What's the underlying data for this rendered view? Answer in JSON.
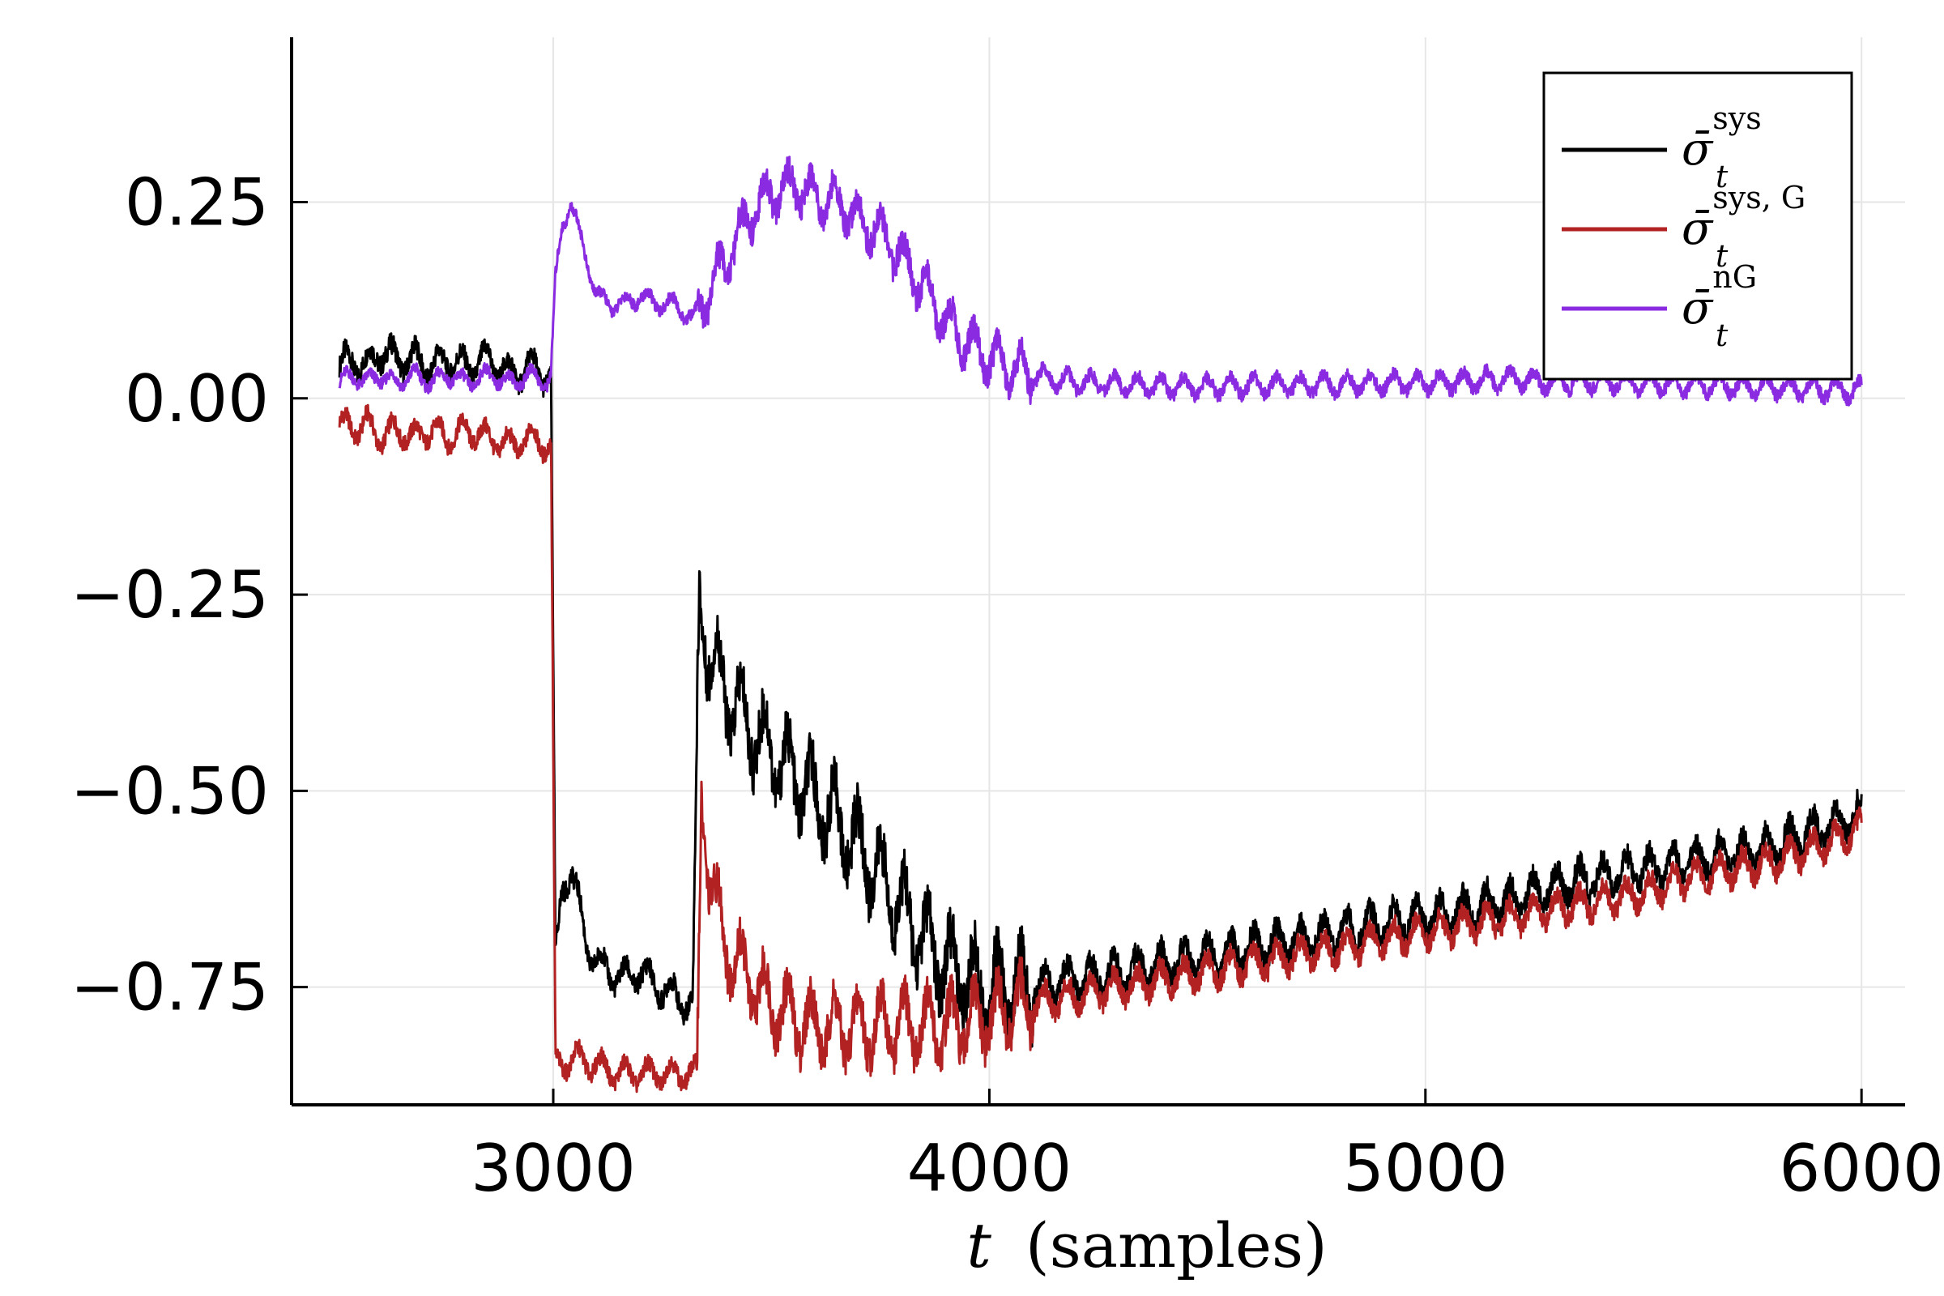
{
  "chart_data": {
    "type": "line",
    "title": "",
    "xlabel": "t (samples)",
    "xlabel_var": "t",
    "xlabel_unit": "(samples)",
    "ylabel": "",
    "xlim": [
      2400,
      6100
    ],
    "ylim": [
      -0.9,
      0.46
    ],
    "x_ticks": [
      3000,
      4000,
      5000,
      6000
    ],
    "x_tick_labels": [
      "3000",
      "4000",
      "5000",
      "6000"
    ],
    "y_ticks": [
      0.25,
      0.0,
      -0.25,
      -0.5,
      -0.75
    ],
    "y_tick_labels": [
      "0.25",
      "0.00",
      "−0.25",
      "−0.50",
      "−0.75"
    ],
    "grid": true,
    "legend_position": "top-right",
    "series": [
      {
        "name": "sigma_bar_t^sys",
        "label_base": "σ̄",
        "label_sub": "t",
        "label_sup": "sys",
        "color": "#000000",
        "x": [
          2510,
          2540,
          2570,
          2600,
          2640,
          2680,
          2720,
          2760,
          2800,
          2850,
          2900,
          2950,
          2985,
          2995,
          3005,
          3020,
          3040,
          3060,
          3080,
          3100,
          3130,
          3160,
          3200,
          3240,
          3280,
          3300,
          3320,
          3335,
          3360,
          3400,
          3450,
          3500,
          3550,
          3600,
          3650,
          3700,
          3750,
          3800,
          3850,
          3900,
          3950,
          4000,
          4050,
          4100,
          4200,
          4300,
          4400,
          4500,
          4600,
          4700,
          4800,
          4900,
          5000,
          5100,
          5200,
          5300,
          5400,
          5500,
          5600,
          5700,
          5800,
          5900,
          6000
        ],
        "y": [
          0.04,
          0.05,
          0.04,
          0.06,
          0.05,
          0.05,
          0.04,
          0.05,
          0.04,
          0.05,
          0.03,
          0.04,
          0.03,
          0.02,
          -0.72,
          -0.62,
          -0.6,
          -0.65,
          -0.7,
          -0.72,
          -0.73,
          -0.74,
          -0.73,
          -0.75,
          -0.76,
          -0.77,
          -0.77,
          -0.25,
          -0.33,
          -0.38,
          -0.42,
          -0.45,
          -0.48,
          -0.51,
          -0.54,
          -0.57,
          -0.61,
          -0.65,
          -0.69,
          -0.72,
          -0.74,
          -0.75,
          -0.75,
          -0.75,
          -0.74,
          -0.73,
          -0.72,
          -0.71,
          -0.7,
          -0.69,
          -0.68,
          -0.67,
          -0.66,
          -0.65,
          -0.64,
          -0.62,
          -0.61,
          -0.6,
          -0.59,
          -0.58,
          -0.57,
          -0.55,
          -0.53
        ]
      },
      {
        "name": "sigma_bar_t^sys,G",
        "label_base": "σ̄",
        "label_sub": "t",
        "label_sup": "sys, G",
        "color": "#b22222",
        "x": [
          2510,
          2540,
          2570,
          2600,
          2640,
          2680,
          2720,
          2760,
          2800,
          2850,
          2900,
          2950,
          2985,
          2995,
          3005,
          3050,
          3100,
          3150,
          3200,
          3250,
          3300,
          3330,
          3340,
          3360,
          3400,
          3450,
          3500,
          3550,
          3600,
          3700,
          3800,
          3900,
          4000,
          4100,
          4200,
          4300,
          4400,
          4500,
          4600,
          4700,
          4800,
          4900,
          5000,
          5100,
          5200,
          5300,
          5400,
          5500,
          5600,
          5700,
          5800,
          5900,
          6000
        ],
        "y": [
          -0.03,
          -0.04,
          -0.03,
          -0.05,
          -0.04,
          -0.05,
          -0.04,
          -0.05,
          -0.04,
          -0.05,
          -0.06,
          -0.05,
          -0.06,
          -0.06,
          -0.85,
          -0.84,
          -0.85,
          -0.86,
          -0.86,
          -0.86,
          -0.86,
          -0.86,
          -0.5,
          -0.62,
          -0.7,
          -0.74,
          -0.77,
          -0.79,
          -0.8,
          -0.8,
          -0.8,
          -0.8,
          -0.79,
          -0.77,
          -0.76,
          -0.75,
          -0.74,
          -0.73,
          -0.72,
          -0.71,
          -0.7,
          -0.69,
          -0.68,
          -0.67,
          -0.66,
          -0.65,
          -0.64,
          -0.63,
          -0.61,
          -0.6,
          -0.59,
          -0.57,
          -0.55
        ]
      },
      {
        "name": "sigma_bar_t^nG",
        "label_base": "σ̄",
        "label_sub": "t",
        "label_sup": "nG",
        "color": "#8a2be2",
        "x": [
          2510,
          2540,
          2570,
          2600,
          2640,
          2680,
          2720,
          2760,
          2800,
          2850,
          2900,
          2950,
          2985,
          2995,
          3005,
          3020,
          3040,
          3060,
          3080,
          3100,
          3130,
          3160,
          3200,
          3240,
          3280,
          3300,
          3320,
          3340,
          3380,
          3420,
          3460,
          3500,
          3550,
          3600,
          3650,
          3700,
          3750,
          3800,
          3850,
          3900,
          3950,
          4000,
          4050,
          4100,
          4150,
          4200,
          4300,
          4400,
          4500,
          4600,
          4700,
          4800,
          4900,
          5000,
          5100,
          5200,
          5300,
          5400,
          5500,
          5600,
          5700,
          5800,
          5900,
          6000
        ],
        "y": [
          0.02,
          0.03,
          0.02,
          0.03,
          0.02,
          0.03,
          0.02,
          0.03,
          0.02,
          0.03,
          0.02,
          0.03,
          0.02,
          0.03,
          0.15,
          0.22,
          0.25,
          0.21,
          0.17,
          0.13,
          0.12,
          0.12,
          0.13,
          0.12,
          0.12,
          0.11,
          0.1,
          0.12,
          0.16,
          0.2,
          0.24,
          0.26,
          0.27,
          0.26,
          0.25,
          0.23,
          0.21,
          0.18,
          0.14,
          0.1,
          0.07,
          0.05,
          0.04,
          0.03,
          0.025,
          0.02,
          0.018,
          0.016,
          0.015,
          0.016,
          0.017,
          0.018,
          0.02,
          0.02,
          0.022,
          0.025,
          0.02,
          0.022,
          0.02,
          0.018,
          0.016,
          0.014,
          0.012,
          0.01
        ]
      }
    ]
  }
}
